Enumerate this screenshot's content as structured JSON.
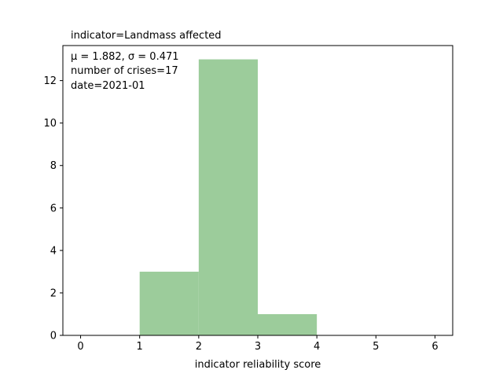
{
  "chart_data": {
    "type": "bar",
    "title": "indicator=Landmass affected",
    "xlabel": "indicator reliability score",
    "ylabel": "",
    "bins": [
      {
        "x0": 1,
        "x1": 2,
        "count": 3
      },
      {
        "x0": 2,
        "x1": 3,
        "count": 13
      },
      {
        "x0": 3,
        "x1": 4,
        "count": 1
      }
    ],
    "xlim": [
      -0.3,
      6.3
    ],
    "ylim": [
      0,
      13.65
    ],
    "xticks": [
      0,
      1,
      2,
      3,
      4,
      5,
      6
    ],
    "yticks": [
      0,
      2,
      4,
      6,
      8,
      10,
      12
    ],
    "bar_color": "#9ccc9b",
    "grid": false,
    "annotations": {
      "stats": "μ = 1.882,  σ = 0.471",
      "count": "number of crises=17",
      "date": "date=2021-01"
    }
  }
}
